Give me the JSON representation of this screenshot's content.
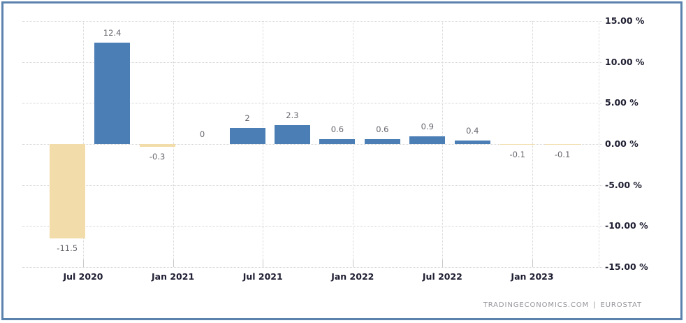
{
  "chart_data": {
    "type": "bar",
    "title": "",
    "values": [
      -11.5,
      12.4,
      -0.3,
      0,
      2,
      2.3,
      0.6,
      0.6,
      0.9,
      0.4,
      -0.1,
      -0.1
    ],
    "bar_labels": [
      "-11.5",
      "12.4",
      "-0.3",
      "0",
      "2",
      "2.3",
      "0.6",
      "0.6",
      "0.9",
      "0.4",
      "-0.1",
      "-0.1"
    ],
    "x_tick_labels": [
      "Jul 2020",
      "Jan 2021",
      "Jul 2021",
      "Jan 2022",
      "Jul 2022",
      "Jan 2023"
    ],
    "y_tick_labels": [
      "15.00 %",
      "10.00 %",
      "5.00 %",
      "0.00 %",
      "-5.00 %",
      "-10.00 %",
      "-15.00 %"
    ],
    "ylim": [
      -15,
      15
    ],
    "y_tick_step": 5,
    "grid": true,
    "legend": false,
    "colors": {
      "positive_bar": "#4a7eb5",
      "negative_bar": "#f2dcaa",
      "gridline": "#d4d4d4",
      "axis_label": "#1e1e32",
      "value_label": "#66666e",
      "frame_border": "#5b82ad"
    }
  },
  "watermark": {
    "source": "TRADINGECONOMICS.COM",
    "separator": "|",
    "provider": "EUROSTAT"
  }
}
